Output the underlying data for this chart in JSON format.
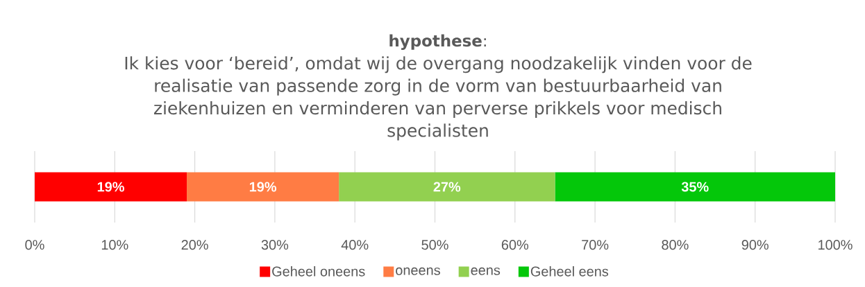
{
  "chart_data": {
    "type": "bar",
    "orientation": "horizontal",
    "stacked": true,
    "title": "**hypothese**:",
    "subtitle": "Ik kies voor ‘bereid’, omdat wij de overgang noodzakelijk vinden voor de realisatie van passende zorg in de vorm van bestuurbaarheid van ziekenhuizen en verminderen van perverse prikkels voor medisch specialisten",
    "categories": [
      null
    ],
    "series": [
      {
        "name": "Geheel oneens",
        "color": "#ff0000",
        "values": [
          19
        ],
        "value_labels": [
          "19%"
        ]
      },
      {
        "name": "oneens",
        "color": "#ff7c44",
        "values": [
          19
        ],
        "value_labels": [
          "19%"
        ]
      },
      {
        "name": "eens",
        "color": "#92d050",
        "values": [
          27
        ],
        "value_labels": [
          "27%"
        ]
      },
      {
        "name": "Geheel eens",
        "color": "#04c70a",
        "values": [
          35
        ],
        "value_labels": [
          "35%"
        ]
      }
    ],
    "xlim": [
      0,
      100
    ],
    "xticks": [
      {
        "value": 0,
        "label": "0%"
      },
      {
        "value": 10,
        "label": "10%"
      },
      {
        "value": 20,
        "label": "20%"
      },
      {
        "value": 30,
        "label": "30%"
      },
      {
        "value": 40,
        "label": "40%"
      },
      {
        "value": 50,
        "label": "50%"
      },
      {
        "value": 60,
        "label": "60%"
      },
      {
        "value": 70,
        "label": "70%"
      },
      {
        "value": 80,
        "label": "80%"
      },
      {
        "value": 90,
        "label": "90%"
      },
      {
        "value": 100,
        "label": "100%"
      }
    ],
    "grid": "x",
    "legend": "bottom"
  }
}
